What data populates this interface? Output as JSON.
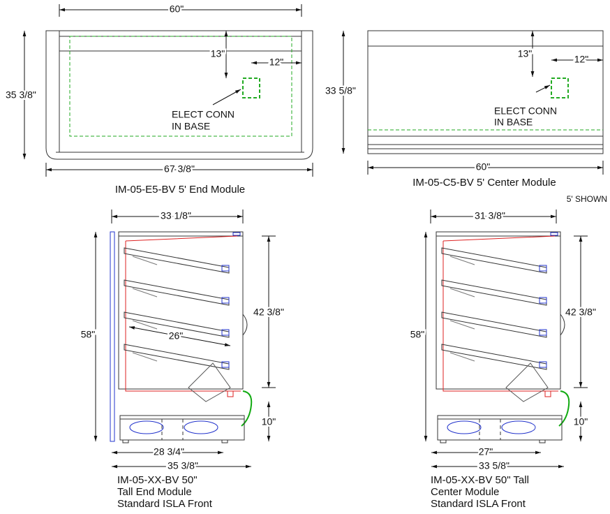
{
  "end_module_plan": {
    "width_top": "60\"",
    "height": "35 3/8\"",
    "conn_from_top": "13\"",
    "conn_from_side": "12\"",
    "note": [
      "ELECT CONN",
      "IN BASE"
    ],
    "width_overall": "67 3/8\"",
    "caption": "IM-05-E5-BV 5' End Module"
  },
  "center_module_plan": {
    "height": "33 5/8\"",
    "conn_from_top": "13\"",
    "conn_from_side": "12\"",
    "note": [
      "ELECT CONN",
      "IN BASE"
    ],
    "width_overall": "60\"",
    "caption": "IM-05-C5-BV 5' Center Module"
  },
  "scale_note": "5' SHOWN",
  "end_module_side": {
    "depth_top": "33 1/8\"",
    "height": "58\"",
    "case_height": "42 3/8\"",
    "shelf_depth": "26\"",
    "base_height": "10\"",
    "base_depth": "28 3/4\"",
    "depth_overall": "35 3/8\"",
    "caption": [
      "IM-05-XX-BV 50\"",
      "Tall End Module",
      "Standard ISLA Front"
    ]
  },
  "center_module_side": {
    "depth_top": "31 3/8\"",
    "height": "58\"",
    "case_height": "42 3/8\"",
    "base_height": "10\"",
    "base_depth": "27\"",
    "depth_overall": "33 5/8\"",
    "caption": [
      "IM-05-XX-BV 50\" Tall",
      "Center Module",
      "Standard ISLA Front"
    ]
  }
}
